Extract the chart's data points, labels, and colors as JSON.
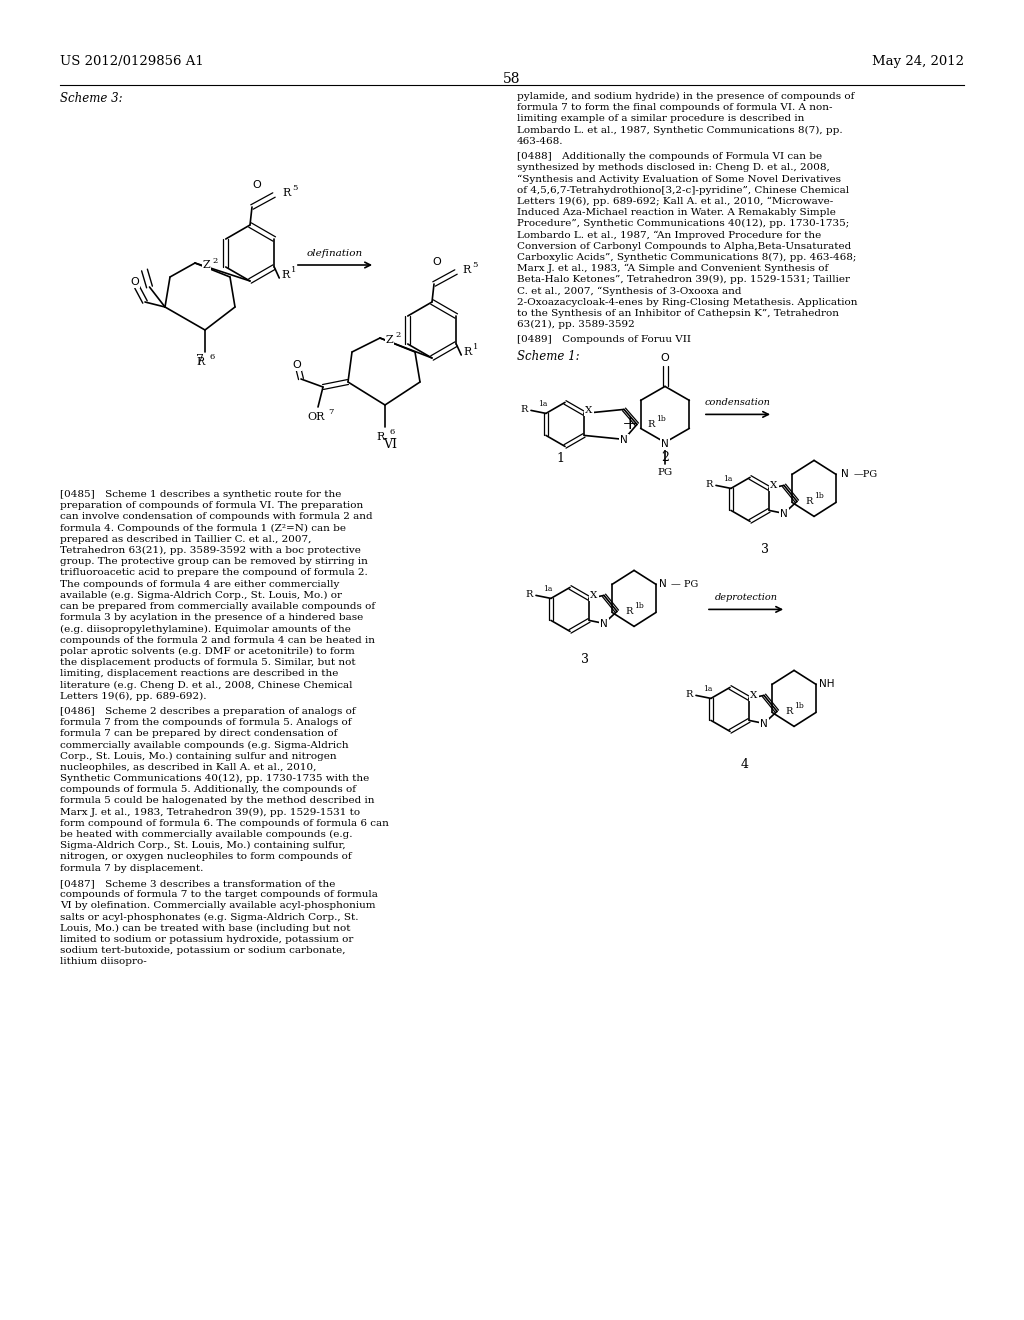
{
  "page_header_left": "US 2012/0129856 A1",
  "page_header_right": "May 24, 2012",
  "page_number": "58",
  "bg_color": "#ffffff",
  "text_color": "#000000",
  "scheme3_label": "Scheme 3:",
  "scheme1_label": "Scheme 1:",
  "compound7_label": "7",
  "compoundVI_label": "VI",
  "compound1_label": "1",
  "compound2_label": "2",
  "compound3_label": "3",
  "compound4_label": "4",
  "olefination_label": "olefination",
  "condensation_label": "condensation",
  "deprotection_label": "deprotection",
  "paragraph_0485": "[0485] Scheme 1 describes a synthetic route for the preparation of compounds of formula VI. The preparation can involve condensation of compounds with formula 2 and formula 4. Compounds of the formula 1 (Z²=N) can be prepared as described in Taillier C. et al., 2007, Tetrahedron 63(21), pp. 3589-3592 with a boc protective group. The protective group can be removed by stirring in trifluoroacetic acid to prepare the compound of formula 2. The compounds of formula 4 are either commercially available (e.g. Sigma-Aldrich Corp., St. Louis, Mo.) or can be prepared from commercially available compounds of formula 3 by acylation in the presence of a hindered base (e.g. diisopropylethylamine). Equimolar amounts of the compounds of the formula 2 and formula 4 can be heated in polar aprotic solvents (e.g. DMF or acetonitrile) to form the displacement products of formula 5. Similar, but not limiting, displacement reactions are described in the literature (e.g. Cheng D. et al., 2008, Chinese Chemical Letters 19(6), pp. 689-692).",
  "paragraph_0486": "[0486] Scheme 2 describes a preparation of analogs of formula 7 from the compounds of formula 5. Analogs of formula 7 can be prepared by direct condensation of commercially available compounds (e.g. Sigma-Aldrich Corp., St. Louis, Mo.) containing sulfur and nitrogen nucleophiles, as described in Kall A. et al., 2010, Synthetic Communications 40(12), pp. 1730-1735 with the compounds of formula 5. Additionally, the compounds of formula 5 could be halogenated by the method described in Marx J. et al., 1983, Tetrahedron 39(9), pp. 1529-1531 to form compound of formula 6. The compounds of formula 6 can be heated with commercially available compounds (e.g. Sigma-Aldrich Corp., St. Louis, Mo.) containing sulfur, nitrogen, or oxygen nucleophiles to form compounds of formula 7 by displacement.",
  "paragraph_0487": "[0487] Scheme 3 describes a transformation of the compounds of formula 7 to the target compounds of formula VI by olefination. Commercially available acyl-phosphonium salts or acyl-phosphonates (e.g. Sigma-Aldrich Corp., St. Louis, Mo.) can be treated with base (including but not limited to sodium or potassium hydroxide, potassium or sodium tert-butoxide, potassium or sodium carbonate, lithium diisopro-",
  "paragraph_right_top": "pylamide, and sodium hydride) in the presence of compounds of formula 7 to form the final compounds of formula VI. A non-limiting example of a similar procedure is described in Lombardo L. et al., 1987, Synthetic Communications 8(7), pp. 463-468.",
  "paragraph_0488": "[0488] Additionally the compounds of Formula VI can be synthesized by methods disclosed in: Cheng D. et al., 2008, “Synthesis and Activity Evaluation of Some Novel Derivatives of 4,5,6,7-Tetrahydrothiono[3,2-c]-pyridine”, Chinese Chemical Letters 19(6), pp. 689-692; Kall A. et al., 2010, “Microwave-Induced Aza-Michael reaction in Water. A Remakably Simple Procedure”, Synthetic Communications 40(12), pp. 1730-1735; Lombardo L. et al., 1987, “An Improved Procedure for the Conversion of Carbonyl Compounds to Alpha,Beta-Unsaturated Carboxylic Acids”, Synthetic Communications 8(7), pp. 463-468; Marx J. et al., 1983, “A Simple and Convenient Synthesis of Beta-Halo Ketones”, Tetrahedron 39(9), pp. 1529-1531; Taillier C. et al., 2007, “Synthesis of 3-Oxooxa and 2-Oxoazacycloak-4-enes by Ring-Closing Metathesis. Application to the Synthesis of an Inhibitor of Cathepsin K”, Tetrahedron 63(21), pp. 3589-3592",
  "paragraph_0489": "[0489] Compounds of Foruu VII"
}
